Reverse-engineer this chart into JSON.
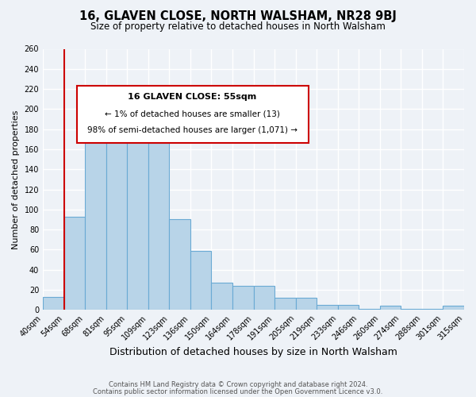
{
  "title": "16, GLAVEN CLOSE, NORTH WALSHAM, NR28 9BJ",
  "subtitle": "Size of property relative to detached houses in North Walsham",
  "xlabel": "Distribution of detached houses by size in North Walsham",
  "ylabel": "Number of detached properties",
  "footer_line1": "Contains HM Land Registry data © Crown copyright and database right 2024.",
  "footer_line2": "Contains public sector information licensed under the Open Government Licence v3.0.",
  "bin_labels": [
    "40sqm",
    "54sqm",
    "68sqm",
    "81sqm",
    "95sqm",
    "109sqm",
    "123sqm",
    "136sqm",
    "150sqm",
    "164sqm",
    "178sqm",
    "191sqm",
    "205sqm",
    "219sqm",
    "233sqm",
    "246sqm",
    "260sqm",
    "274sqm",
    "288sqm",
    "301sqm",
    "315sqm"
  ],
  "bar_values": [
    13,
    93,
    179,
    179,
    210,
    166,
    90,
    59,
    27,
    24,
    24,
    12,
    12,
    5,
    5,
    1,
    4,
    1,
    1,
    4
  ],
  "bar_color": "#b8d4e8",
  "bar_edge_color": "#6aaad4",
  "highlight_color": "#cc0000",
  "annotation_title": "16 GLAVEN CLOSE: 55sqm",
  "annotation_line1": "← 1% of detached houses are smaller (13)",
  "annotation_line2": "98% of semi-detached houses are larger (1,071) →",
  "ylim": [
    0,
    260
  ],
  "yticks": [
    0,
    20,
    40,
    60,
    80,
    100,
    120,
    140,
    160,
    180,
    200,
    220,
    240,
    260
  ],
  "background_color": "#eef2f7",
  "grid_color": "#ffffff"
}
